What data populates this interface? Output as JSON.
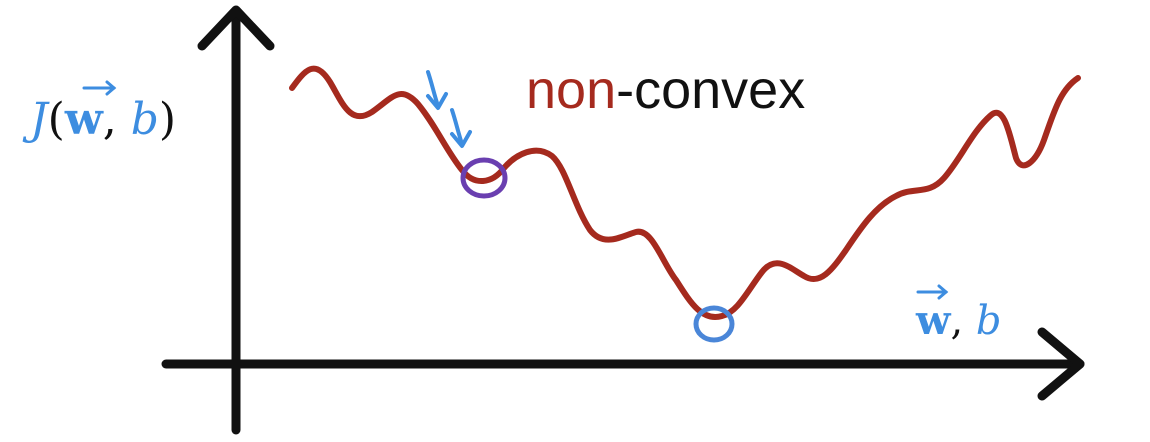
{
  "diagram": {
    "y_axis_label": {
      "func": "J",
      "open_paren": "(",
      "vec": "w",
      "sep": ", ",
      "bias": "b",
      "close_paren": ")"
    },
    "x_axis_label": {
      "vec": "w",
      "sep": ", ",
      "bias": "b"
    },
    "title": {
      "prefix": "non",
      "suffix": "-convex"
    },
    "colors": {
      "axis": "#111111",
      "curve": "#a52a1e",
      "label_blue": "#3d8de0",
      "local_min_circle": "#6a3fb0",
      "global_min_circle": "#4a86d8",
      "arrows": "#3d8de0",
      "title_prefix": "#a52a1e",
      "title_suffix": "#111111"
    },
    "annotations": [
      {
        "name": "local-minimum-circle",
        "kind": "local minimum"
      },
      {
        "name": "global-minimum-circle",
        "kind": "global minimum"
      },
      {
        "name": "gradient-step-arrows",
        "kind": "descent steps"
      }
    ]
  }
}
